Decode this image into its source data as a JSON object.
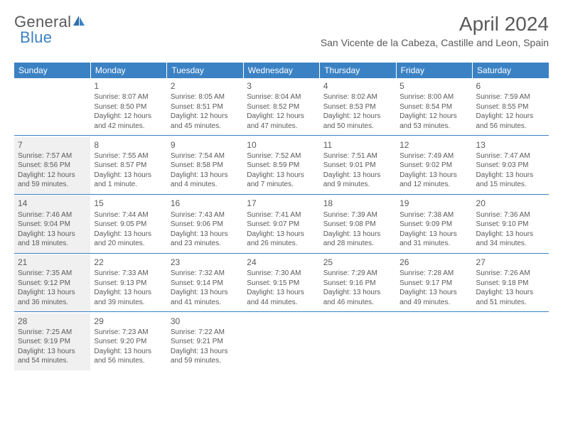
{
  "brand": {
    "part1": "General",
    "part2": "Blue"
  },
  "title": "April 2024",
  "location": "San Vicente de la Cabeza, Castille and Leon, Spain",
  "colors": {
    "accent": "#3b82c4",
    "text": "#5a5a5a",
    "bg": "#ffffff",
    "shade": "#f0f0f0"
  },
  "day_headers": [
    "Sunday",
    "Monday",
    "Tuesday",
    "Wednesday",
    "Thursday",
    "Friday",
    "Saturday"
  ],
  "weeks": [
    [
      {
        "num": "",
        "lines": []
      },
      {
        "num": "1",
        "lines": [
          "Sunrise: 8:07 AM",
          "Sunset: 8:50 PM",
          "Daylight: 12 hours and 42 minutes."
        ]
      },
      {
        "num": "2",
        "lines": [
          "Sunrise: 8:05 AM",
          "Sunset: 8:51 PM",
          "Daylight: 12 hours and 45 minutes."
        ]
      },
      {
        "num": "3",
        "lines": [
          "Sunrise: 8:04 AM",
          "Sunset: 8:52 PM",
          "Daylight: 12 hours and 47 minutes."
        ]
      },
      {
        "num": "4",
        "lines": [
          "Sunrise: 8:02 AM",
          "Sunset: 8:53 PM",
          "Daylight: 12 hours and 50 minutes."
        ]
      },
      {
        "num": "5",
        "lines": [
          "Sunrise: 8:00 AM",
          "Sunset: 8:54 PM",
          "Daylight: 12 hours and 53 minutes."
        ]
      },
      {
        "num": "6",
        "lines": [
          "Sunrise: 7:59 AM",
          "Sunset: 8:55 PM",
          "Daylight: 12 hours and 56 minutes."
        ]
      }
    ],
    [
      {
        "num": "7",
        "lines": [
          "Sunrise: 7:57 AM",
          "Sunset: 8:56 PM",
          "Daylight: 12 hours and 59 minutes."
        ]
      },
      {
        "num": "8",
        "lines": [
          "Sunrise: 7:55 AM",
          "Sunset: 8:57 PM",
          "Daylight: 13 hours and 1 minute."
        ]
      },
      {
        "num": "9",
        "lines": [
          "Sunrise: 7:54 AM",
          "Sunset: 8:58 PM",
          "Daylight: 13 hours and 4 minutes."
        ]
      },
      {
        "num": "10",
        "lines": [
          "Sunrise: 7:52 AM",
          "Sunset: 8:59 PM",
          "Daylight: 13 hours and 7 minutes."
        ]
      },
      {
        "num": "11",
        "lines": [
          "Sunrise: 7:51 AM",
          "Sunset: 9:01 PM",
          "Daylight: 13 hours and 9 minutes."
        ]
      },
      {
        "num": "12",
        "lines": [
          "Sunrise: 7:49 AM",
          "Sunset: 9:02 PM",
          "Daylight: 13 hours and 12 minutes."
        ]
      },
      {
        "num": "13",
        "lines": [
          "Sunrise: 7:47 AM",
          "Sunset: 9:03 PM",
          "Daylight: 13 hours and 15 minutes."
        ]
      }
    ],
    [
      {
        "num": "14",
        "lines": [
          "Sunrise: 7:46 AM",
          "Sunset: 9:04 PM",
          "Daylight: 13 hours and 18 minutes."
        ]
      },
      {
        "num": "15",
        "lines": [
          "Sunrise: 7:44 AM",
          "Sunset: 9:05 PM",
          "Daylight: 13 hours and 20 minutes."
        ]
      },
      {
        "num": "16",
        "lines": [
          "Sunrise: 7:43 AM",
          "Sunset: 9:06 PM",
          "Daylight: 13 hours and 23 minutes."
        ]
      },
      {
        "num": "17",
        "lines": [
          "Sunrise: 7:41 AM",
          "Sunset: 9:07 PM",
          "Daylight: 13 hours and 26 minutes."
        ]
      },
      {
        "num": "18",
        "lines": [
          "Sunrise: 7:39 AM",
          "Sunset: 9:08 PM",
          "Daylight: 13 hours and 28 minutes."
        ]
      },
      {
        "num": "19",
        "lines": [
          "Sunrise: 7:38 AM",
          "Sunset: 9:09 PM",
          "Daylight: 13 hours and 31 minutes."
        ]
      },
      {
        "num": "20",
        "lines": [
          "Sunrise: 7:36 AM",
          "Sunset: 9:10 PM",
          "Daylight: 13 hours and 34 minutes."
        ]
      }
    ],
    [
      {
        "num": "21",
        "lines": [
          "Sunrise: 7:35 AM",
          "Sunset: 9:12 PM",
          "Daylight: 13 hours and 36 minutes."
        ]
      },
      {
        "num": "22",
        "lines": [
          "Sunrise: 7:33 AM",
          "Sunset: 9:13 PM",
          "Daylight: 13 hours and 39 minutes."
        ]
      },
      {
        "num": "23",
        "lines": [
          "Sunrise: 7:32 AM",
          "Sunset: 9:14 PM",
          "Daylight: 13 hours and 41 minutes."
        ]
      },
      {
        "num": "24",
        "lines": [
          "Sunrise: 7:30 AM",
          "Sunset: 9:15 PM",
          "Daylight: 13 hours and 44 minutes."
        ]
      },
      {
        "num": "25",
        "lines": [
          "Sunrise: 7:29 AM",
          "Sunset: 9:16 PM",
          "Daylight: 13 hours and 46 minutes."
        ]
      },
      {
        "num": "26",
        "lines": [
          "Sunrise: 7:28 AM",
          "Sunset: 9:17 PM",
          "Daylight: 13 hours and 49 minutes."
        ]
      },
      {
        "num": "27",
        "lines": [
          "Sunrise: 7:26 AM",
          "Sunset: 9:18 PM",
          "Daylight: 13 hours and 51 minutes."
        ]
      }
    ],
    [
      {
        "num": "28",
        "lines": [
          "Sunrise: 7:25 AM",
          "Sunset: 9:19 PM",
          "Daylight: 13 hours and 54 minutes."
        ]
      },
      {
        "num": "29",
        "lines": [
          "Sunrise: 7:23 AM",
          "Sunset: 9:20 PM",
          "Daylight: 13 hours and 56 minutes."
        ]
      },
      {
        "num": "30",
        "lines": [
          "Sunrise: 7:22 AM",
          "Sunset: 9:21 PM",
          "Daylight: 13 hours and 59 minutes."
        ]
      },
      {
        "num": "",
        "lines": []
      },
      {
        "num": "",
        "lines": []
      },
      {
        "num": "",
        "lines": []
      },
      {
        "num": "",
        "lines": []
      }
    ]
  ]
}
